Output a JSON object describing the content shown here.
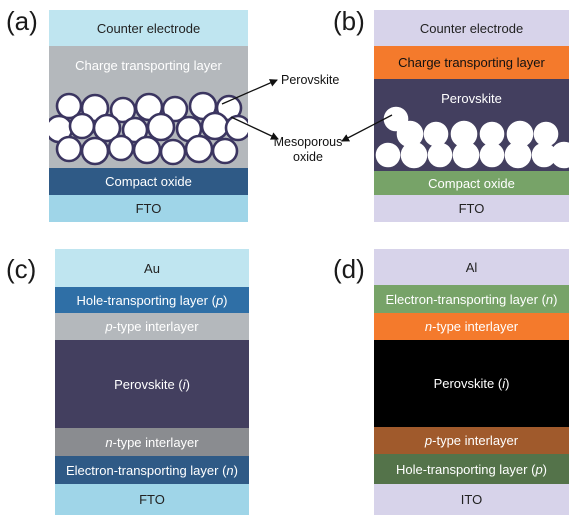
{
  "panels": {
    "a": {
      "label": "(a)",
      "layers": {
        "counter": "Counter electrode",
        "ctl": "Charge transporting layer",
        "compact": "Compact oxide",
        "fto": "FTO"
      }
    },
    "b": {
      "label": "(b)",
      "layers": {
        "counter": "Counter electrode",
        "ctl": "Charge transporting layer",
        "perovskite": "Perovskite",
        "compact": "Compact oxide",
        "fto": "FTO"
      }
    },
    "c": {
      "label": "(c)",
      "layers": {
        "au": "Au",
        "htl": "Hole-transporting layer (",
        "htl_sym": "p",
        "ptype_sym": "p",
        "ptype": "-type interlayer",
        "perov": "Perovskite (",
        "perov_sym": "i",
        "ntype_sym": "n",
        "ntype": "-type interlayer",
        "etl": "Electron-transporting layer (",
        "etl_sym": "n",
        "fto": "FTO"
      }
    },
    "d": {
      "label": "(d)",
      "layers": {
        "al": "Al",
        "etl": "Electron-transporting layer (",
        "etl_sym": "n",
        "ntype_sym": "n",
        "ntype": "-type interlayer",
        "perov": "Perovskite (",
        "perov_sym": "i",
        "ptype_sym": "p",
        "ptype": "-type interlayer",
        "htl": "Hole-transporting layer (",
        "htl_sym": "p",
        "ito": "ITO"
      }
    }
  },
  "callouts": {
    "perovskite": "Perovskite",
    "mesoporous_line1": "Mesoporous",
    "mesoporous_line2": "oxide"
  },
  "closing_paren": ")",
  "colors": {
    "light_blue": "#bfe5f0",
    "gray": "#b4b8bc",
    "dark_blue": "#2f5a86",
    "fto_blue": "#9fd5e8",
    "lavender": "#d7d3ea",
    "orange": "#f47a2c",
    "dark_purple": "#433f5f",
    "green": "#77a368",
    "black": "#000000",
    "brown": "#a05a2c",
    "olive": "#54734a"
  }
}
